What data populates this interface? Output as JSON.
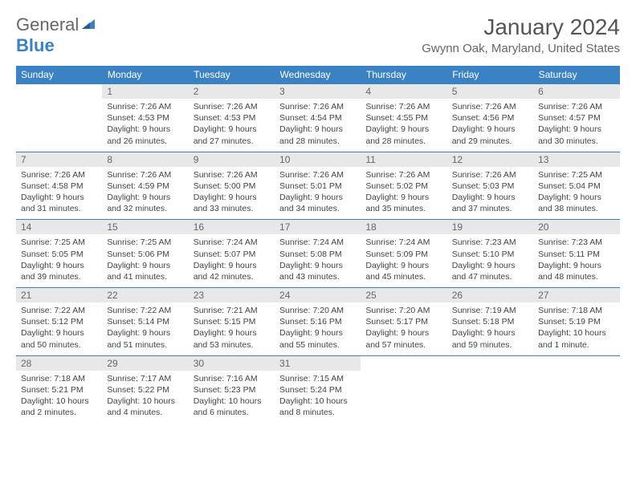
{
  "brand": {
    "general": "General",
    "blue": "Blue"
  },
  "title": "January 2024",
  "location": "Gwynn Oak, Maryland, United States",
  "colors": {
    "accent": "#3b82c4",
    "daynum_bg": "#e8e8e8",
    "text": "#444"
  },
  "day_headers": [
    "Sunday",
    "Monday",
    "Tuesday",
    "Wednesday",
    "Thursday",
    "Friday",
    "Saturday"
  ],
  "weeks": [
    {
      "nums": [
        "",
        "1",
        "2",
        "3",
        "4",
        "5",
        "6"
      ],
      "cells": [
        null,
        {
          "sunrise": "Sunrise: 7:26 AM",
          "sunset": "Sunset: 4:53 PM",
          "day1": "Daylight: 9 hours",
          "day2": "and 26 minutes."
        },
        {
          "sunrise": "Sunrise: 7:26 AM",
          "sunset": "Sunset: 4:53 PM",
          "day1": "Daylight: 9 hours",
          "day2": "and 27 minutes."
        },
        {
          "sunrise": "Sunrise: 7:26 AM",
          "sunset": "Sunset: 4:54 PM",
          "day1": "Daylight: 9 hours",
          "day2": "and 28 minutes."
        },
        {
          "sunrise": "Sunrise: 7:26 AM",
          "sunset": "Sunset: 4:55 PM",
          "day1": "Daylight: 9 hours",
          "day2": "and 28 minutes."
        },
        {
          "sunrise": "Sunrise: 7:26 AM",
          "sunset": "Sunset: 4:56 PM",
          "day1": "Daylight: 9 hours",
          "day2": "and 29 minutes."
        },
        {
          "sunrise": "Sunrise: 7:26 AM",
          "sunset": "Sunset: 4:57 PM",
          "day1": "Daylight: 9 hours",
          "day2": "and 30 minutes."
        }
      ]
    },
    {
      "nums": [
        "7",
        "8",
        "9",
        "10",
        "11",
        "12",
        "13"
      ],
      "cells": [
        {
          "sunrise": "Sunrise: 7:26 AM",
          "sunset": "Sunset: 4:58 PM",
          "day1": "Daylight: 9 hours",
          "day2": "and 31 minutes."
        },
        {
          "sunrise": "Sunrise: 7:26 AM",
          "sunset": "Sunset: 4:59 PM",
          "day1": "Daylight: 9 hours",
          "day2": "and 32 minutes."
        },
        {
          "sunrise": "Sunrise: 7:26 AM",
          "sunset": "Sunset: 5:00 PM",
          "day1": "Daylight: 9 hours",
          "day2": "and 33 minutes."
        },
        {
          "sunrise": "Sunrise: 7:26 AM",
          "sunset": "Sunset: 5:01 PM",
          "day1": "Daylight: 9 hours",
          "day2": "and 34 minutes."
        },
        {
          "sunrise": "Sunrise: 7:26 AM",
          "sunset": "Sunset: 5:02 PM",
          "day1": "Daylight: 9 hours",
          "day2": "and 35 minutes."
        },
        {
          "sunrise": "Sunrise: 7:26 AM",
          "sunset": "Sunset: 5:03 PM",
          "day1": "Daylight: 9 hours",
          "day2": "and 37 minutes."
        },
        {
          "sunrise": "Sunrise: 7:25 AM",
          "sunset": "Sunset: 5:04 PM",
          "day1": "Daylight: 9 hours",
          "day2": "and 38 minutes."
        }
      ]
    },
    {
      "nums": [
        "14",
        "15",
        "16",
        "17",
        "18",
        "19",
        "20"
      ],
      "cells": [
        {
          "sunrise": "Sunrise: 7:25 AM",
          "sunset": "Sunset: 5:05 PM",
          "day1": "Daylight: 9 hours",
          "day2": "and 39 minutes."
        },
        {
          "sunrise": "Sunrise: 7:25 AM",
          "sunset": "Sunset: 5:06 PM",
          "day1": "Daylight: 9 hours",
          "day2": "and 41 minutes."
        },
        {
          "sunrise": "Sunrise: 7:24 AM",
          "sunset": "Sunset: 5:07 PM",
          "day1": "Daylight: 9 hours",
          "day2": "and 42 minutes."
        },
        {
          "sunrise": "Sunrise: 7:24 AM",
          "sunset": "Sunset: 5:08 PM",
          "day1": "Daylight: 9 hours",
          "day2": "and 43 minutes."
        },
        {
          "sunrise": "Sunrise: 7:24 AM",
          "sunset": "Sunset: 5:09 PM",
          "day1": "Daylight: 9 hours",
          "day2": "and 45 minutes."
        },
        {
          "sunrise": "Sunrise: 7:23 AM",
          "sunset": "Sunset: 5:10 PM",
          "day1": "Daylight: 9 hours",
          "day2": "and 47 minutes."
        },
        {
          "sunrise": "Sunrise: 7:23 AM",
          "sunset": "Sunset: 5:11 PM",
          "day1": "Daylight: 9 hours",
          "day2": "and 48 minutes."
        }
      ]
    },
    {
      "nums": [
        "21",
        "22",
        "23",
        "24",
        "25",
        "26",
        "27"
      ],
      "cells": [
        {
          "sunrise": "Sunrise: 7:22 AM",
          "sunset": "Sunset: 5:12 PM",
          "day1": "Daylight: 9 hours",
          "day2": "and 50 minutes."
        },
        {
          "sunrise": "Sunrise: 7:22 AM",
          "sunset": "Sunset: 5:14 PM",
          "day1": "Daylight: 9 hours",
          "day2": "and 51 minutes."
        },
        {
          "sunrise": "Sunrise: 7:21 AM",
          "sunset": "Sunset: 5:15 PM",
          "day1": "Daylight: 9 hours",
          "day2": "and 53 minutes."
        },
        {
          "sunrise": "Sunrise: 7:20 AM",
          "sunset": "Sunset: 5:16 PM",
          "day1": "Daylight: 9 hours",
          "day2": "and 55 minutes."
        },
        {
          "sunrise": "Sunrise: 7:20 AM",
          "sunset": "Sunset: 5:17 PM",
          "day1": "Daylight: 9 hours",
          "day2": "and 57 minutes."
        },
        {
          "sunrise": "Sunrise: 7:19 AM",
          "sunset": "Sunset: 5:18 PM",
          "day1": "Daylight: 9 hours",
          "day2": "and 59 minutes."
        },
        {
          "sunrise": "Sunrise: 7:18 AM",
          "sunset": "Sunset: 5:19 PM",
          "day1": "Daylight: 10 hours",
          "day2": "and 1 minute."
        }
      ]
    },
    {
      "nums": [
        "28",
        "29",
        "30",
        "31",
        "",
        "",
        ""
      ],
      "cells": [
        {
          "sunrise": "Sunrise: 7:18 AM",
          "sunset": "Sunset: 5:21 PM",
          "day1": "Daylight: 10 hours",
          "day2": "and 2 minutes."
        },
        {
          "sunrise": "Sunrise: 7:17 AM",
          "sunset": "Sunset: 5:22 PM",
          "day1": "Daylight: 10 hours",
          "day2": "and 4 minutes."
        },
        {
          "sunrise": "Sunrise: 7:16 AM",
          "sunset": "Sunset: 5:23 PM",
          "day1": "Daylight: 10 hours",
          "day2": "and 6 minutes."
        },
        {
          "sunrise": "Sunrise: 7:15 AM",
          "sunset": "Sunset: 5:24 PM",
          "day1": "Daylight: 10 hours",
          "day2": "and 8 minutes."
        },
        null,
        null,
        null
      ]
    }
  ]
}
